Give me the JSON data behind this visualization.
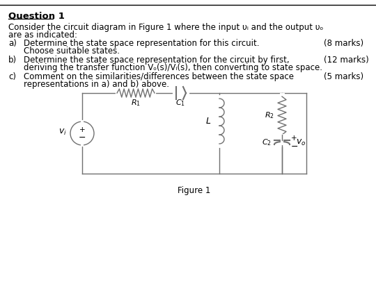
{
  "title": "Question 1",
  "bg_color": "#ffffff",
  "text_color": "#000000",
  "fig_width": 5.4,
  "fig_height": 4.32,
  "dpi": 100,
  "intro_line1": "Consider the circuit diagram in Figure 1 where the input υᵢ and the output υₒ",
  "intro_line2": "are as indicated:",
  "qa_label": "a)",
  "qa_text1": "Determine the state space representation for this circuit.",
  "qa_text2": "Choose suitable states.",
  "qa_marks": "(8 marks)",
  "qb_label": "b)",
  "qb_text1": "Determine the state space representation for the circuit by first,",
  "qb_text2": "deriving the transfer function Vₒ(s)/Vᵢ(s), then converting to state space.",
  "qb_marks": "(12 marks)",
  "qc_label": "c)",
  "qc_text1": "Comment on the similarities/differences between the state space",
  "qc_text2": "representations in a) and b) above.",
  "qc_marks": "(5 marks)",
  "fig_label": "Figure 1",
  "line_color": "#808080",
  "text_font_size": 8.5,
  "marks_font_size": 8.5
}
